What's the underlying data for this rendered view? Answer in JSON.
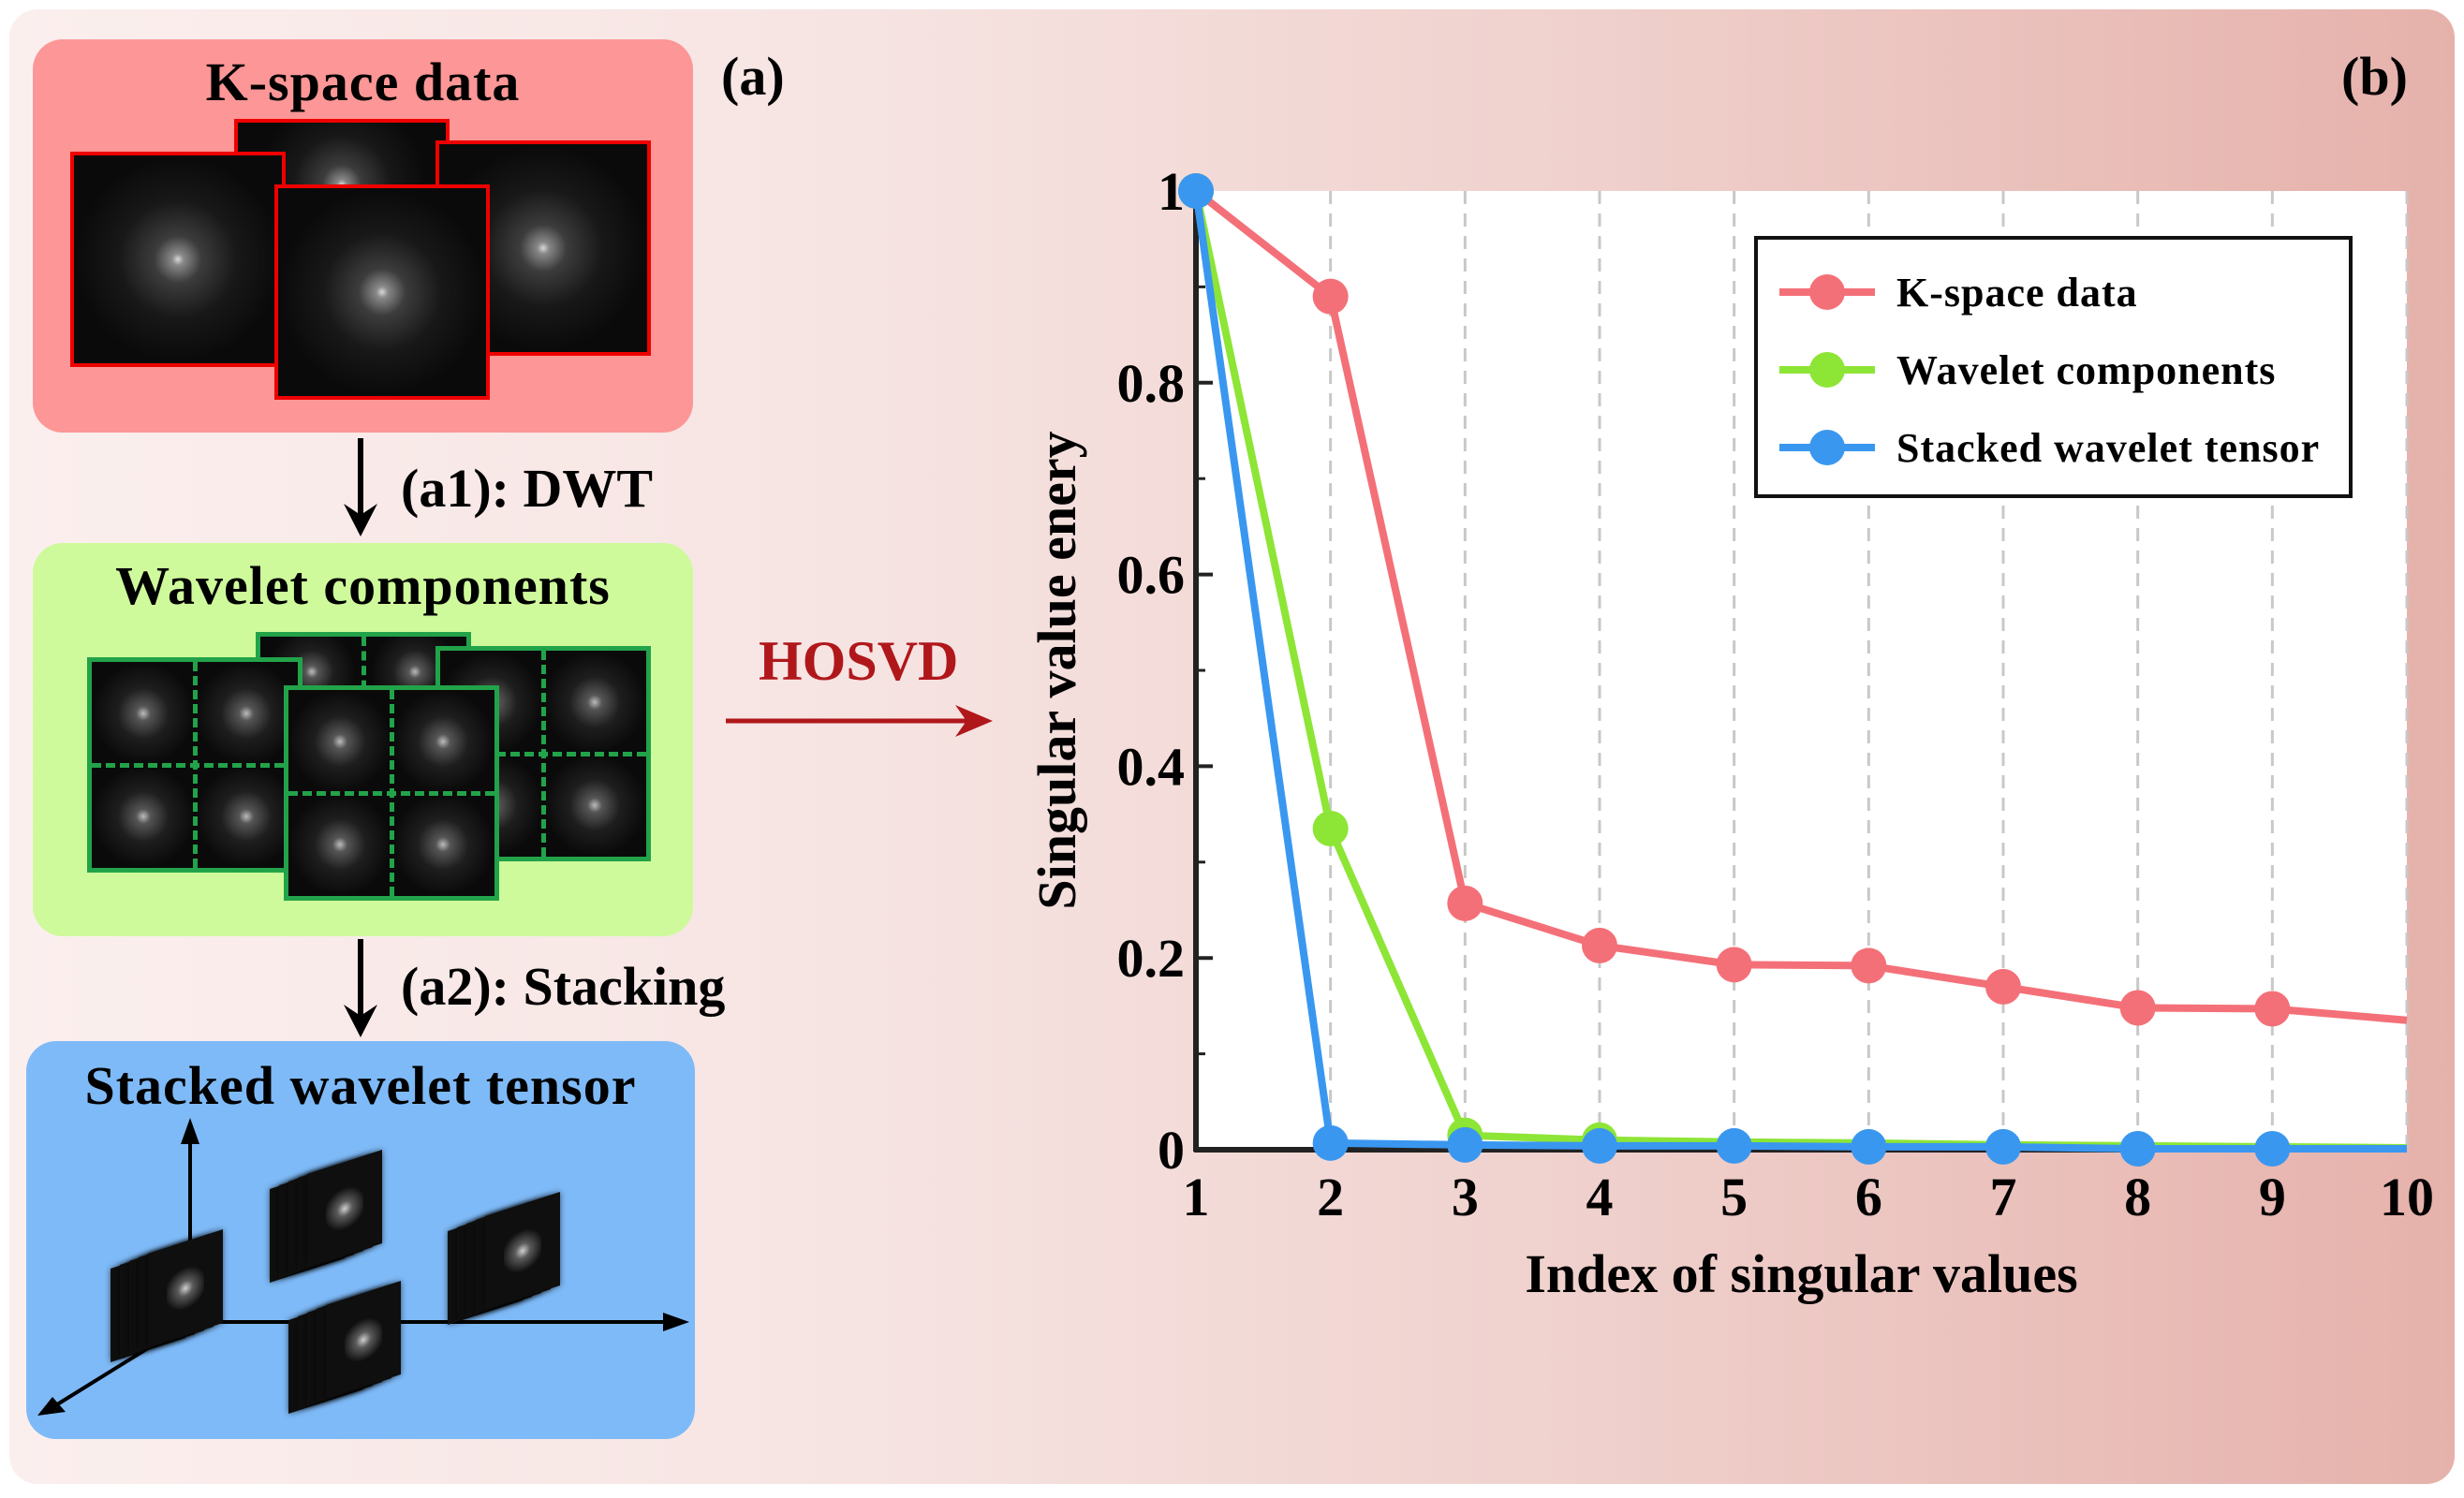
{
  "panel_labels": {
    "a": "(a)",
    "b": "(b)"
  },
  "left": {
    "kspace_title": "K-space data",
    "step1_label": "(a1): DWT",
    "wavelet_title": "Wavelet components",
    "step2_label": "(a2): Stacking",
    "tensor_title": "Stacked wavelet tensor"
  },
  "arrow_label": "HOSVD",
  "colors": {
    "kspace_panel": "#fd9696",
    "wavelet_panel": "#cefa9b",
    "tensor_panel": "#7ebaf7",
    "hosvd": "#b0171b",
    "frame_red": "#ee0000",
    "frame_green": "#22a34a"
  },
  "chart_data": {
    "type": "line",
    "xlabel": "Index of singular values",
    "ylabel": "Singular value enery",
    "xlim": [
      1,
      10
    ],
    "ylim": [
      0,
      1
    ],
    "xticks": [
      "1",
      "2",
      "3",
      "4",
      "5",
      "6",
      "7",
      "8",
      "9",
      "10"
    ],
    "yticks": [
      {
        "v": 0,
        "label": "0"
      },
      {
        "v": 0.2,
        "label": "0.2"
      },
      {
        "v": 0.4,
        "label": "0.4"
      },
      {
        "v": 0.6,
        "label": "0.6"
      },
      {
        "v": 0.8,
        "label": "0.8"
      },
      {
        "v": 1,
        "label": "1"
      }
    ],
    "grid": "vertical dashed",
    "legend_position": "top-right",
    "series": [
      {
        "name": "K-space data",
        "color": "#f47078",
        "x": [
          1,
          2,
          3,
          4,
          5,
          6,
          7,
          8,
          9,
          10
        ],
        "y": [
          1.0,
          0.89,
          0.257,
          0.213,
          0.193,
          0.192,
          0.17,
          0.148,
          0.147,
          0.135
        ],
        "marker_count": 9
      },
      {
        "name": "Wavelet components",
        "color": "#8de536",
        "x": [
          1,
          2,
          3,
          4,
          5,
          6,
          7,
          8,
          9,
          10
        ],
        "y": [
          1.0,
          0.335,
          0.015,
          0.01,
          0.008,
          0.007,
          0.005,
          0.004,
          0.003,
          0.002
        ],
        "marker_count": 4
      },
      {
        "name": "Stacked wavelet tensor",
        "color": "#3a97f0",
        "x": [
          1,
          2,
          3,
          4,
          5,
          6,
          7,
          8,
          9,
          10
        ],
        "y": [
          1.0,
          0.007,
          0.005,
          0.004,
          0.004,
          0.003,
          0.003,
          0.001,
          0.001,
          0.001
        ],
        "marker_count": 9
      }
    ]
  }
}
